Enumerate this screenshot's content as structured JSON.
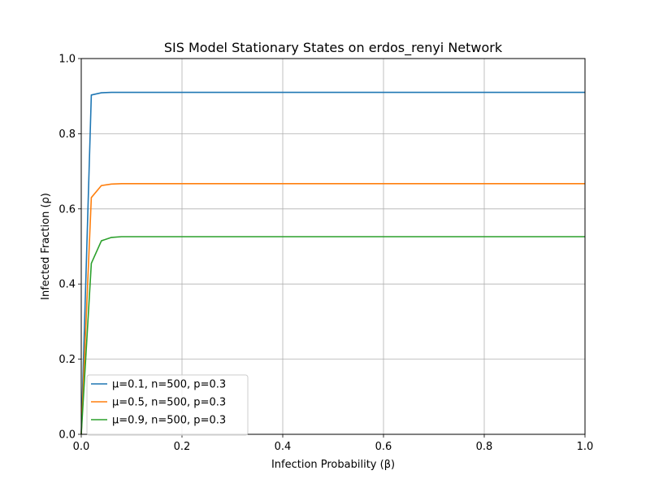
{
  "chart_data": {
    "type": "line",
    "title": "SIS Model Stationary States on erdos_renyi Network",
    "xlabel": "Infection Probability (β)",
    "ylabel": "Infected Fraction (ρ)",
    "xlim": [
      0,
      1
    ],
    "ylim": [
      0,
      1
    ],
    "xticks": [
      "0.0",
      "0.2",
      "0.4",
      "0.6",
      "0.8",
      "1.0"
    ],
    "yticks": [
      "0.0",
      "0.2",
      "0.4",
      "0.6",
      "0.8",
      "1.0"
    ],
    "grid": true,
    "legend_position": "lower-left",
    "x": [
      0,
      0.02,
      0.04,
      0.06,
      0.08,
      0.1,
      0.2,
      0.4,
      0.6,
      0.8,
      1.0
    ],
    "series": [
      {
        "name": "μ=0.1, n=500, p=0.3",
        "color": "#1f77b4",
        "values": [
          0.0,
          0.903,
          0.909,
          0.91,
          0.91,
          0.91,
          0.91,
          0.91,
          0.91,
          0.91,
          0.91
        ]
      },
      {
        "name": "μ=0.5, n=500, p=0.3",
        "color": "#ff7f0e",
        "values": [
          0.0,
          0.63,
          0.662,
          0.666,
          0.667,
          0.667,
          0.667,
          0.667,
          0.667,
          0.667,
          0.667
        ]
      },
      {
        "name": "μ=0.9, n=500, p=0.3",
        "color": "#2ca02c",
        "values": [
          0.0,
          0.455,
          0.515,
          0.524,
          0.526,
          0.526,
          0.526,
          0.526,
          0.526,
          0.526,
          0.526
        ]
      }
    ]
  }
}
